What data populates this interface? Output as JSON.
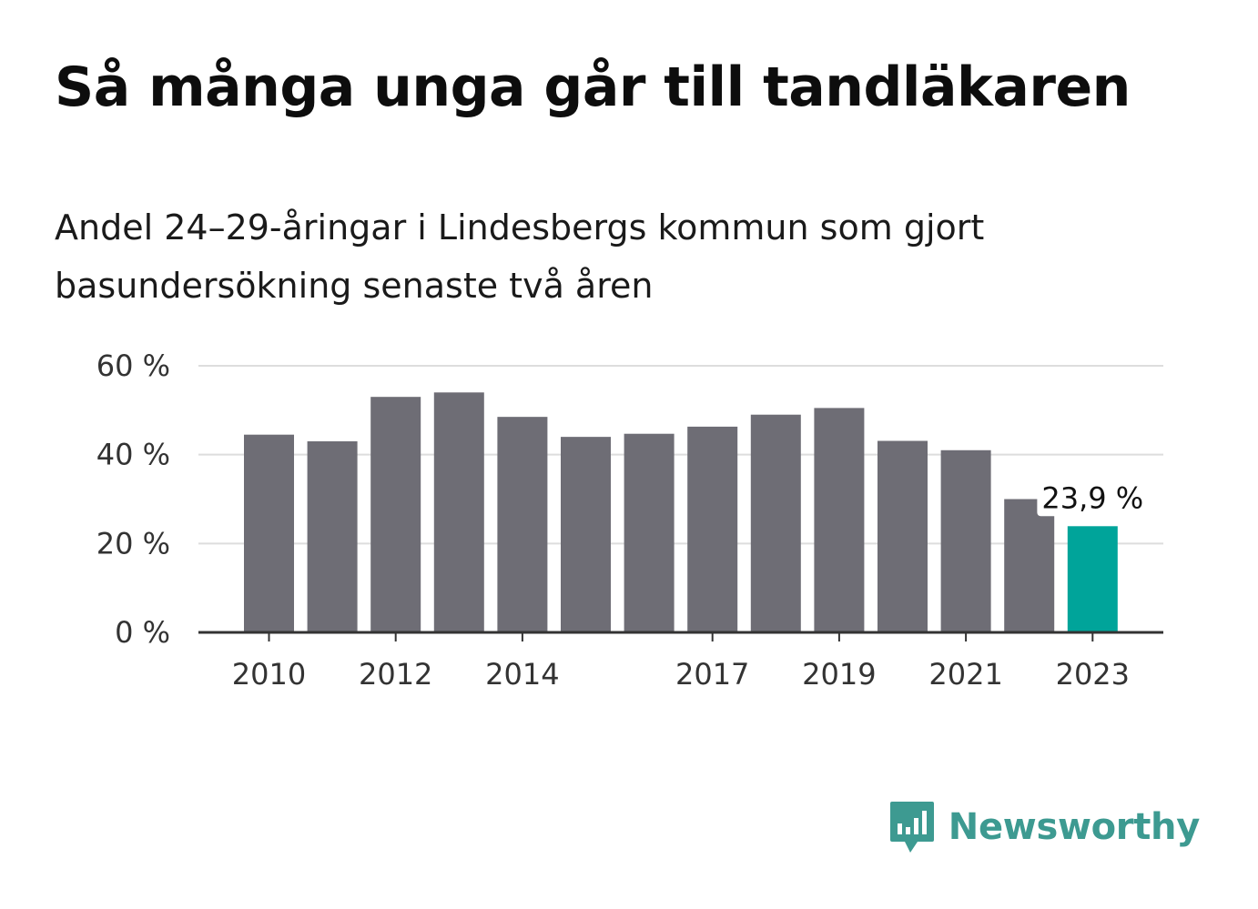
{
  "title": "Så många unga går till tandläkaren",
  "subtitle": "Andel 24–29-åringar i Lindesbergs kommun som gjort basundersökning senaste två åren",
  "logo": {
    "text": "Newsworthy",
    "icon": "newsworthy-chart-bubble-icon"
  },
  "colors": {
    "bar": "#6e6d75",
    "highlight": "#00a49a",
    "grid": "#dddddd",
    "axis": "#333333",
    "brand": "#3d9a91"
  },
  "chart_data": {
    "type": "bar",
    "categories": [
      "2010",
      "2011",
      "2012",
      "2013",
      "2014",
      "2015",
      "2016",
      "2017",
      "2018",
      "2019",
      "2020",
      "2021",
      "2022",
      "2023"
    ],
    "values": [
      44.5,
      43,
      53,
      54,
      48.5,
      44,
      44.7,
      46.3,
      49,
      50.5,
      43.1,
      41,
      30,
      23.9
    ],
    "highlight_index": 13,
    "data_labels": [
      {
        "index": 13,
        "text": "23,9 %"
      }
    ],
    "x_tick_labels": [
      "2010",
      "2012",
      "2014",
      "2017",
      "2019",
      "2021",
      "2023"
    ],
    "y_ticks": [
      0,
      20,
      40,
      60
    ],
    "y_tick_labels": [
      "0 %",
      "20 %",
      "40 %",
      "60 %"
    ],
    "ylim": [
      0,
      60
    ],
    "grid": true,
    "legend": false
  }
}
